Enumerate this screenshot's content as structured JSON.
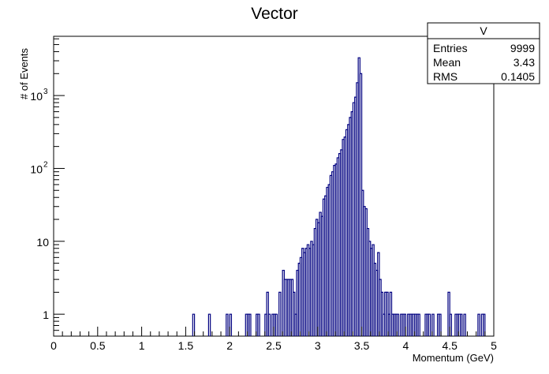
{
  "chart_data": {
    "type": "histogram",
    "title": "Vector",
    "xlabel": "Momentum (GeV)",
    "ylabel": "# of Events",
    "xlim": [
      0,
      5
    ],
    "ylim": [
      0.5,
      6500
    ],
    "log_y": true,
    "grid": false,
    "bins": 250,
    "x_tick_labels": [
      "0",
      "0.5",
      "1",
      "1.5",
      "2",
      "2.5",
      "3",
      "3.5",
      "4",
      "4.5",
      "5"
    ],
    "y_ticks": [
      {
        "value": 1,
        "base": "1",
        "exp": ""
      },
      {
        "value": 10,
        "base": "10",
        "exp": ""
      },
      {
        "value": 100,
        "base": "10",
        "exp": "2"
      },
      {
        "value": 1000,
        "base": "10",
        "exp": "3"
      }
    ],
    "line_color": "#000080",
    "stats_box": {
      "title": "V",
      "position": "top-right",
      "rows": [
        {
          "label": "Entries",
          "value": "9999"
        },
        {
          "label": "Mean",
          "value": "3.43"
        },
        {
          "label": "RMS",
          "value": "0.1405"
        }
      ]
    },
    "points": [
      [
        1.58,
        1
      ],
      [
        1.76,
        1
      ],
      [
        1.96,
        1
      ],
      [
        2.0,
        1
      ],
      [
        2.18,
        1
      ],
      [
        2.2,
        1
      ],
      [
        2.22,
        1
      ],
      [
        2.3,
        1
      ],
      [
        2.32,
        1
      ],
      [
        2.4,
        1
      ],
      [
        2.42,
        2
      ],
      [
        2.44,
        1
      ],
      [
        2.48,
        1
      ],
      [
        2.5,
        1
      ],
      [
        2.52,
        1
      ],
      [
        2.56,
        2
      ],
      [
        2.6,
        4
      ],
      [
        2.62,
        3
      ],
      [
        2.64,
        3
      ],
      [
        2.66,
        3
      ],
      [
        2.68,
        3
      ],
      [
        2.7,
        3
      ],
      [
        2.72,
        2
      ],
      [
        2.74,
        1
      ],
      [
        2.76,
        4
      ],
      [
        2.78,
        5
      ],
      [
        2.8,
        6
      ],
      [
        2.82,
        8
      ],
      [
        2.84,
        7
      ],
      [
        2.86,
        8
      ],
      [
        2.88,
        9
      ],
      [
        2.9,
        8
      ],
      [
        2.92,
        10
      ],
      [
        2.94,
        9
      ],
      [
        2.96,
        15
      ],
      [
        2.98,
        20
      ],
      [
        3.0,
        18
      ],
      [
        3.02,
        25
      ],
      [
        3.04,
        22
      ],
      [
        3.06,
        38
      ],
      [
        3.08,
        42
      ],
      [
        3.1,
        55
      ],
      [
        3.12,
        60
      ],
      [
        3.14,
        80
      ],
      [
        3.16,
        90
      ],
      [
        3.18,
        110
      ],
      [
        3.2,
        115
      ],
      [
        3.22,
        140
      ],
      [
        3.24,
        160
      ],
      [
        3.26,
        180
      ],
      [
        3.28,
        250
      ],
      [
        3.3,
        270
      ],
      [
        3.32,
        340
      ],
      [
        3.34,
        400
      ],
      [
        3.36,
        500
      ],
      [
        3.38,
        600
      ],
      [
        3.4,
        800
      ],
      [
        3.42,
        950
      ],
      [
        3.44,
        1500
      ],
      [
        3.46,
        3300
      ],
      [
        3.48,
        2000
      ],
      [
        3.5,
        50
      ],
      [
        3.52,
        30
      ],
      [
        3.54,
        28
      ],
      [
        3.56,
        15
      ],
      [
        3.58,
        10
      ],
      [
        3.6,
        8
      ],
      [
        3.62,
        9
      ],
      [
        3.64,
        5
      ],
      [
        3.66,
        4
      ],
      [
        3.68,
        7
      ],
      [
        3.7,
        3
      ],
      [
        3.72,
        2
      ],
      [
        3.74,
        1
      ],
      [
        3.76,
        2
      ],
      [
        3.78,
        2
      ],
      [
        3.8,
        1
      ],
      [
        3.82,
        2
      ],
      [
        3.84,
        1
      ],
      [
        3.86,
        1
      ],
      [
        3.88,
        1
      ],
      [
        3.9,
        1
      ],
      [
        3.94,
        1
      ],
      [
        3.96,
        1
      ],
      [
        3.98,
        1
      ],
      [
        4.02,
        1
      ],
      [
        4.04,
        1
      ],
      [
        4.06,
        1
      ],
      [
        4.08,
        1
      ],
      [
        4.1,
        1
      ],
      [
        4.12,
        1
      ],
      [
        4.14,
        1
      ],
      [
        4.22,
        1
      ],
      [
        4.24,
        1
      ],
      [
        4.26,
        1
      ],
      [
        4.3,
        1
      ],
      [
        4.36,
        1
      ],
      [
        4.38,
        1
      ],
      [
        4.48,
        2
      ],
      [
        4.5,
        1
      ],
      [
        4.56,
        1
      ],
      [
        4.58,
        1
      ],
      [
        4.6,
        1
      ],
      [
        4.62,
        1
      ],
      [
        4.66,
        1
      ],
      [
        4.82,
        1
      ],
      [
        4.86,
        1
      ],
      [
        4.88,
        1
      ]
    ]
  }
}
